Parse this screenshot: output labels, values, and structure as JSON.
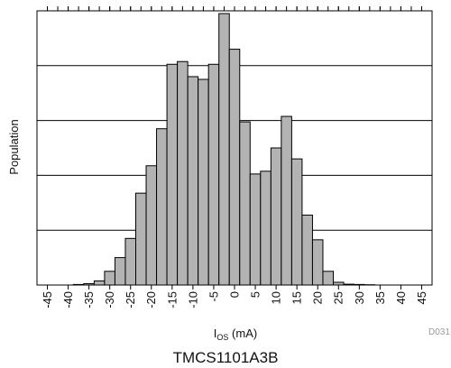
{
  "chart_data": {
    "type": "bar",
    "title": "",
    "xlabel": "I",
    "xlabel_subscript": "OS",
    "xlabel_unit": " (mA)",
    "ylabel": "Population",
    "caption": "TMCS1101A3B",
    "figure_id": "D031",
    "xlim": [
      -47.5,
      47.5
    ],
    "ylim": [
      0,
      100
    ],
    "grid": "horizontal",
    "bar_color": "#b3b3b3",
    "edge_color": "#000000",
    "grid_color": "#000000",
    "x_ticks": [
      -45,
      -40,
      -35,
      -30,
      -25,
      -20,
      -15,
      -10,
      -5,
      0,
      5,
      10,
      15,
      20,
      25,
      30,
      35,
      40,
      45
    ],
    "x_tick_labels": [
      "-45",
      "-40",
      "-35",
      "-30",
      "-25",
      "-20",
      "-15",
      "-10",
      "-5",
      "0",
      "5",
      "10",
      "15",
      "20",
      "25",
      "30",
      "35",
      "40",
      "45"
    ],
    "y_gridlines": [
      20,
      40,
      60,
      80
    ],
    "bins": [
      -37.5,
      -35,
      -32.5,
      -30,
      -27.5,
      -25,
      -22.5,
      -20,
      -17.5,
      -15,
      -12.5,
      -10,
      -7.5,
      -5,
      -2.5,
      0,
      2.5,
      5,
      7.5,
      10,
      12.5,
      15,
      17.5,
      20,
      22.5,
      25,
      27.5,
      30,
      32.5
    ],
    "values": [
      0.2,
      0.5,
      1.5,
      5,
      10,
      17,
      33.5,
      43.5,
      57,
      80.5,
      81.5,
      76,
      75,
      80.5,
      99,
      86,
      59.5,
      40.5,
      41.5,
      50,
      61.5,
      46,
      25.5,
      16.5,
      5,
      1,
      0.3,
      0.2,
      0.1
    ],
    "bin_width": 2.5
  }
}
